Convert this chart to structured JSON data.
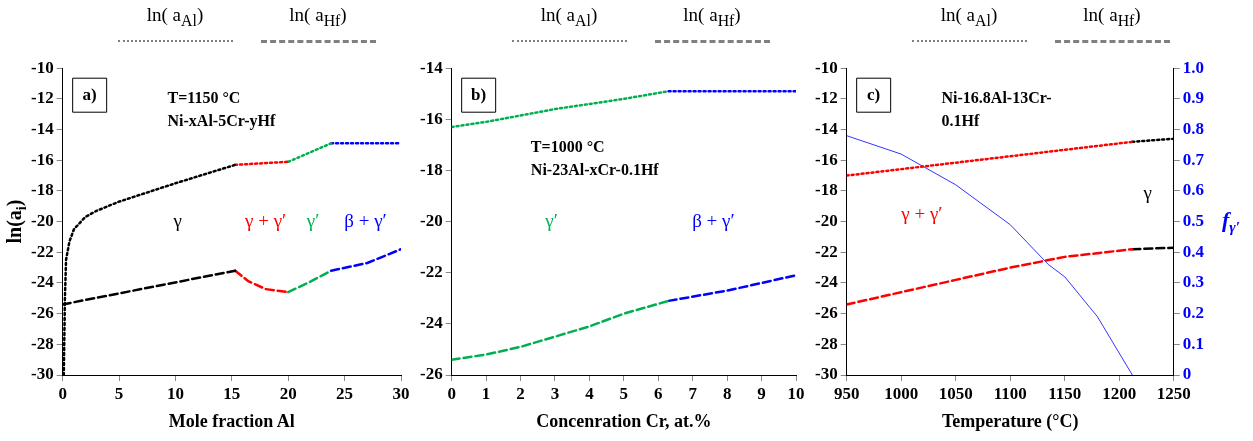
{
  "chart_data": [
    {
      "type": "line",
      "xlabel": "Mole fraction Al",
      "ylabel": "ln(a$_{i}$)",
      "xlim": [
        0,
        30
      ],
      "xticks": [
        0,
        5,
        10,
        15,
        20,
        25,
        30
      ],
      "ylim": [
        -30,
        -10
      ],
      "yticks": [
        -30,
        -28,
        -26,
        -24,
        -22,
        -20,
        -18,
        -16,
        -14,
        -12,
        -10
      ],
      "grid": false,
      "annotations": [
        "ln( a$_{Al}$)",
        "ln( a$_{Hf}$)",
        "a)",
        "T=1150 °C",
        "Ni-xAl-5Cr-yHf",
        "γ",
        "γ + γ′",
        "γ′",
        "β + γ′"
      ],
      "series": [
        {
          "color": "#000000",
          "line_style": "dotted",
          "x": [
            0.1,
            0.2,
            0.3,
            0.6,
            1,
            2,
            3,
            5,
            10,
            15.3
          ],
          "values": [
            -30,
            -25,
            -22.5,
            -21.3,
            -20.5,
            -19.7,
            -19.3,
            -18.7,
            -17.5,
            -16.3
          ]
        },
        {
          "color": "#ff0000",
          "line_style": "dotted",
          "x": [
            15.3,
            20
          ],
          "values": [
            -16.3,
            -16.1
          ]
        },
        {
          "color": "#00b050",
          "line_style": "dotted",
          "x": [
            20,
            23.8
          ],
          "values": [
            -16.1,
            -14.9
          ]
        },
        {
          "color": "#0000ff",
          "line_style": "dotted",
          "x": [
            23.8,
            30
          ],
          "values": [
            -14.9,
            -14.9
          ]
        },
        {
          "color": "#000000",
          "line_style": "dashed",
          "x": [
            0,
            15.3
          ],
          "values": [
            -25.4,
            -23.2
          ]
        },
        {
          "color": "#ff0000",
          "line_style": "dashed",
          "x": [
            15.3,
            16.5,
            18,
            20
          ],
          "values": [
            -23.2,
            -23.9,
            -24.4,
            -24.6
          ]
        },
        {
          "color": "#00b050",
          "line_style": "dashed",
          "x": [
            20,
            22,
            23.8
          ],
          "values": [
            -24.6,
            -23.9,
            -23.2
          ]
        },
        {
          "color": "#0000ff",
          "line_style": "dashed",
          "x": [
            23.8,
            27,
            30
          ],
          "values": [
            -23.2,
            -22.7,
            -21.8
          ]
        }
      ]
    },
    {
      "type": "line",
      "xlabel": "Concenration Cr, at.%",
      "xlim": [
        0,
        10
      ],
      "xticks": [
        0,
        1,
        2,
        3,
        4,
        5,
        6,
        7,
        8,
        9,
        10
      ],
      "ylim": [
        -26,
        -14
      ],
      "yticks": [
        -26,
        -24,
        -22,
        -20,
        -18,
        -16,
        -14
      ],
      "grid": false,
      "annotations": [
        "ln( a$_{Al}$)",
        "ln( a$_{Hf}$)",
        "b)",
        "T=1000 °C",
        "Ni-23Al-xCr-0.1Hf",
        "γ′",
        "β + γ′"
      ],
      "series": [
        {
          "color": "#00b050",
          "line_style": "dotted",
          "x": [
            0,
            1,
            2,
            3,
            4,
            5,
            6.3
          ],
          "values": [
            -16.3,
            -16.1,
            -15.85,
            -15.6,
            -15.4,
            -15.2,
            -14.9
          ]
        },
        {
          "color": "#0000ff",
          "line_style": "dotted",
          "x": [
            6.3,
            10
          ],
          "values": [
            -14.9,
            -14.9
          ]
        },
        {
          "color": "#00b050",
          "line_style": "dashed",
          "x": [
            0,
            1,
            2,
            3,
            4,
            5,
            6.3
          ],
          "values": [
            -25.4,
            -25.2,
            -24.9,
            -24.5,
            -24.1,
            -23.6,
            -23.1
          ]
        },
        {
          "color": "#0000ff",
          "line_style": "dashed",
          "x": [
            6.3,
            8,
            10
          ],
          "values": [
            -23.1,
            -22.7,
            -22.1
          ]
        }
      ]
    },
    {
      "type": "line",
      "xlabel": "Temperature (°C)",
      "y2label": "f$_{γ′}$",
      "xlim": [
        950,
        1250
      ],
      "xticks": [
        950,
        1000,
        1050,
        1100,
        1150,
        1200,
        1250
      ],
      "ylim": [
        -30,
        -10
      ],
      "yticks": [
        -30,
        -28,
        -26,
        -24,
        -22,
        -20,
        -18,
        -16,
        -14,
        -12,
        -10
      ],
      "y2lim": [
        0,
        1
      ],
      "y2ticks": [
        0,
        0.1,
        0.2,
        0.3,
        0.4,
        0.5,
        0.6,
        0.7,
        0.8,
        0.9,
        {
          "value": 1,
          "label": "1.0"
        }
      ],
      "grid": false,
      "annotations": [
        "ln( a$_{Al}$)",
        "ln( a$_{Hf}$)",
        "c)",
        "Ni-16.8Al-13Cr-",
        "0.1Hf",
        "γ + γ′",
        "γ"
      ],
      "series": [
        {
          "color": "#ff0000",
          "line_style": "dotted",
          "x": [
            950,
            1212
          ],
          "values": [
            -17,
            -14.8
          ]
        },
        {
          "color": "#000000",
          "line_style": "dotted",
          "x": [
            1212,
            1250
          ],
          "values": [
            -14.8,
            -14.6
          ]
        },
        {
          "color": "#ff0000",
          "line_style": "dashed",
          "x": [
            950,
            1000,
            1050,
            1100,
            1150,
            1212
          ],
          "values": [
            -25.4,
            -24.6,
            -23.8,
            -23,
            -22.3,
            -21.8
          ]
        },
        {
          "color": "#000000",
          "line_style": "dashed",
          "x": [
            1212,
            1250
          ],
          "values": [
            -21.8,
            -21.7
          ]
        },
        {
          "color": "#0000ff",
          "line_style": "solid",
          "axis": "y2",
          "x": [
            950,
            1000,
            1050,
            1100,
            1135,
            1150,
            1180,
            1212
          ],
          "values": [
            0.78,
            0.72,
            0.62,
            0.49,
            0.36,
            0.32,
            0.19,
            0
          ]
        }
      ]
    }
  ]
}
